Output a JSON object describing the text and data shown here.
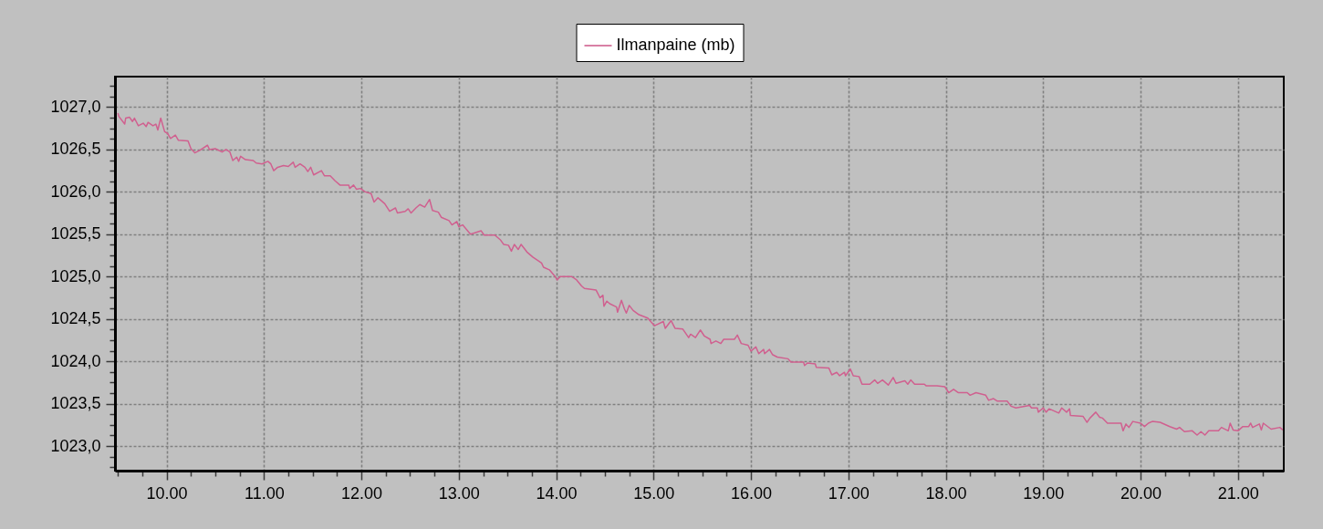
{
  "chart_data": {
    "type": "line",
    "xlim": [
      9.47,
      21.47
    ],
    "xticks": [
      {
        "value": 9.5,
        "label": null
      },
      {
        "value": 9.75,
        "label": null
      },
      {
        "value": 10,
        "label": "10.00"
      },
      {
        "value": 10.25,
        "label": null
      },
      {
        "value": 10.5,
        "label": null
      },
      {
        "value": 10.75,
        "label": null
      },
      {
        "value": 11,
        "label": "11.00"
      },
      {
        "value": 11.25,
        "label": null
      },
      {
        "value": 11.5,
        "label": null
      },
      {
        "value": 11.75,
        "label": null
      },
      {
        "value": 12,
        "label": "12.00"
      },
      {
        "value": 12.25,
        "label": null
      },
      {
        "value": 12.5,
        "label": null
      },
      {
        "value": 12.75,
        "label": null
      },
      {
        "value": 13,
        "label": "13.00"
      },
      {
        "value": 13.25,
        "label": null
      },
      {
        "value": 13.5,
        "label": null
      },
      {
        "value": 13.75,
        "label": null
      },
      {
        "value": 14,
        "label": "14.00"
      },
      {
        "value": 14.25,
        "label": null
      },
      {
        "value": 14.5,
        "label": null
      },
      {
        "value": 14.75,
        "label": null
      },
      {
        "value": 15,
        "label": "15.00"
      },
      {
        "value": 15.25,
        "label": null
      },
      {
        "value": 15.5,
        "label": null
      },
      {
        "value": 15.75,
        "label": null
      },
      {
        "value": 16,
        "label": "16.00"
      },
      {
        "value": 16.25,
        "label": null
      },
      {
        "value": 16.5,
        "label": null
      },
      {
        "value": 16.75,
        "label": null
      },
      {
        "value": 17,
        "label": "17.00"
      },
      {
        "value": 17.25,
        "label": null
      },
      {
        "value": 17.5,
        "label": null
      },
      {
        "value": 17.75,
        "label": null
      },
      {
        "value": 18,
        "label": "18.00"
      },
      {
        "value": 18.25,
        "label": null
      },
      {
        "value": 18.5,
        "label": null
      },
      {
        "value": 18.75,
        "label": null
      },
      {
        "value": 19,
        "label": "19.00"
      },
      {
        "value": 19.25,
        "label": null
      },
      {
        "value": 19.5,
        "label": null
      },
      {
        "value": 19.75,
        "label": null
      },
      {
        "value": 20,
        "label": "20.00"
      },
      {
        "value": 20.25,
        "label": null
      },
      {
        "value": 20.5,
        "label": null
      },
      {
        "value": 20.75,
        "label": null
      },
      {
        "value": 21,
        "label": "21.00"
      },
      {
        "value": 21.25,
        "label": null
      }
    ],
    "ylim": [
      1022.71,
      1027.36
    ],
    "yticks": [
      {
        "value": 1022.75,
        "label": null
      },
      {
        "value": 1022.875,
        "label": null
      },
      {
        "value": 1023,
        "label": "1023,0"
      },
      {
        "value": 1023.125,
        "label": null
      },
      {
        "value": 1023.25,
        "label": null
      },
      {
        "value": 1023.375,
        "label": null
      },
      {
        "value": 1023.5,
        "label": "1023,5"
      },
      {
        "value": 1023.625,
        "label": null
      },
      {
        "value": 1023.75,
        "label": null
      },
      {
        "value": 1023.875,
        "label": null
      },
      {
        "value": 1024,
        "label": "1024,0"
      },
      {
        "value": 1024.125,
        "label": null
      },
      {
        "value": 1024.25,
        "label": null
      },
      {
        "value": 1024.375,
        "label": null
      },
      {
        "value": 1024.5,
        "label": "1024,5"
      },
      {
        "value": 1024.625,
        "label": null
      },
      {
        "value": 1024.75,
        "label": null
      },
      {
        "value": 1024.875,
        "label": null
      },
      {
        "value": 1025,
        "label": "1025,0"
      },
      {
        "value": 1025.125,
        "label": null
      },
      {
        "value": 1025.25,
        "label": null
      },
      {
        "value": 1025.375,
        "label": null
      },
      {
        "value": 1025.5,
        "label": "1025,5"
      },
      {
        "value": 1025.625,
        "label": null
      },
      {
        "value": 1025.75,
        "label": null
      },
      {
        "value": 1025.875,
        "label": null
      },
      {
        "value": 1026,
        "label": "1026,0"
      },
      {
        "value": 1026.125,
        "label": null
      },
      {
        "value": 1026.25,
        "label": null
      },
      {
        "value": 1026.375,
        "label": null
      },
      {
        "value": 1026.5,
        "label": "1026,5"
      },
      {
        "value": 1026.625,
        "label": null
      },
      {
        "value": 1026.75,
        "label": null
      },
      {
        "value": 1026.875,
        "label": null
      },
      {
        "value": 1027,
        "label": "1027,0"
      },
      {
        "value": 1027.125,
        "label": null
      },
      {
        "value": 1027.25,
        "label": null
      }
    ],
    "grid": true,
    "legend": "top",
    "line_style": "solid",
    "x": [
      9.5,
      9.51,
      9.57,
      9.58,
      9.62,
      9.65,
      9.67,
      9.71,
      9.76,
      9.79,
      9.81,
      9.86,
      9.89,
      9.91,
      9.94,
      9.98,
      10.01,
      10.04,
      10.09,
      10.12,
      10.22,
      10.25,
      10.29,
      10.34,
      10.42,
      10.44,
      10.5,
      10.57,
      10.61,
      10.65,
      10.68,
      10.72,
      10.74,
      10.76,
      10.81,
      10.89,
      10.92,
      10.98,
      11.04,
      11.07,
      11.1,
      11.14,
      11.2,
      11.25,
      11.3,
      11.32,
      11.37,
      11.42,
      11.45,
      11.48,
      11.51,
      11.59,
      11.62,
      11.68,
      11.73,
      11.78,
      11.87,
      11.88,
      11.92,
      11.95,
      11.99,
      12.04,
      12.1,
      12.13,
      12.17,
      12.2,
      12.24,
      12.29,
      12.35,
      12.37,
      12.45,
      12.48,
      12.51,
      12.56,
      12.6,
      12.65,
      12.7,
      12.73,
      12.79,
      12.82,
      12.9,
      12.93,
      12.98,
      13.0,
      13.04,
      13.12,
      13.23,
      13.26,
      13.37,
      13.43,
      13.46,
      13.51,
      13.54,
      13.57,
      13.61,
      13.64,
      13.7,
      13.76,
      13.85,
      13.87,
      13.93,
      13.99,
      14.01,
      14.04,
      14.16,
      14.21,
      14.26,
      14.29,
      14.41,
      14.45,
      14.48,
      14.49,
      14.52,
      14.55,
      14.62,
      14.63,
      14.67,
      14.7,
      14.72,
      14.75,
      14.79,
      14.85,
      14.94,
      14.97,
      15.01,
      15.1,
      15.12,
      15.18,
      15.22,
      15.3,
      15.36,
      15.38,
      15.43,
      15.48,
      15.52,
      15.58,
      15.59,
      15.64,
      15.69,
      15.72,
      15.83,
      15.86,
      15.9,
      15.97,
      16.0,
      16.05,
      16.08,
      16.13,
      16.14,
      16.19,
      16.22,
      16.27,
      16.38,
      16.41,
      16.54,
      16.55,
      16.58,
      16.66,
      16.67,
      16.8,
      16.83,
      16.88,
      16.91,
      16.96,
      16.97,
      17.02,
      17.05,
      17.11,
      17.14,
      17.22,
      17.27,
      17.3,
      17.35,
      17.41,
      17.46,
      17.49,
      17.58,
      17.61,
      17.64,
      17.68,
      17.78,
      17.8,
      17.91,
      17.99,
      18.03,
      18.08,
      18.13,
      18.22,
      18.25,
      18.31,
      18.41,
      18.44,
      18.49,
      18.53,
      18.63,
      18.67,
      18.72,
      18.86,
      18.88,
      18.94,
      18.95,
      19.0,
      19.03,
      19.06,
      19.16,
      19.19,
      19.24,
      19.27,
      19.28,
      19.41,
      19.45,
      19.48,
      19.54,
      19.58,
      19.61,
      19.66,
      19.8,
      19.82,
      19.85,
      19.88,
      19.92,
      20.0,
      20.04,
      20.08,
      20.12,
      20.2,
      20.3,
      20.37,
      20.4,
      20.45,
      20.53,
      20.58,
      20.62,
      20.66,
      20.7,
      20.8,
      20.83,
      20.9,
      20.92,
      20.95,
      21.0,
      21.05,
      21.11,
      21.13,
      21.15,
      21.22,
      21.24,
      21.26,
      21.34,
      21.43,
      21.46
    ],
    "series": [
      {
        "name": "Ilmanpaine (mb)",
        "color": "#d0608f",
        "values": [
          1026.93,
          1026.89,
          1026.8,
          1026.87,
          1026.88,
          1026.83,
          1026.87,
          1026.78,
          1026.81,
          1026.77,
          1026.82,
          1026.78,
          1026.8,
          1026.73,
          1026.87,
          1026.71,
          1026.69,
          1026.63,
          1026.67,
          1026.61,
          1026.6,
          1026.51,
          1026.46,
          1026.49,
          1026.55,
          1026.5,
          1026.51,
          1026.47,
          1026.5,
          1026.47,
          1026.37,
          1026.41,
          1026.36,
          1026.42,
          1026.38,
          1026.37,
          1026.34,
          1026.33,
          1026.36,
          1026.33,
          1026.25,
          1026.29,
          1026.31,
          1026.3,
          1026.35,
          1026.29,
          1026.33,
          1026.29,
          1026.24,
          1026.29,
          1026.2,
          1026.25,
          1026.19,
          1026.19,
          1026.13,
          1026.08,
          1026.08,
          1026.04,
          1026.08,
          1026.03,
          1026.04,
          1026.0,
          1025.98,
          1025.88,
          1025.93,
          1025.9,
          1025.86,
          1025.77,
          1025.81,
          1025.75,
          1025.77,
          1025.8,
          1025.75,
          1025.81,
          1025.85,
          1025.82,
          1025.91,
          1025.78,
          1025.76,
          1025.7,
          1025.66,
          1025.61,
          1025.65,
          1025.59,
          1025.61,
          1025.5,
          1025.54,
          1025.49,
          1025.49,
          1025.43,
          1025.38,
          1025.37,
          1025.3,
          1025.38,
          1025.32,
          1025.38,
          1025.29,
          1025.23,
          1025.16,
          1025.11,
          1025.08,
          1025.0,
          1024.96,
          1025.0,
          1025.0,
          1024.96,
          1024.89,
          1024.86,
          1024.84,
          1024.75,
          1024.78,
          1024.65,
          1024.71,
          1024.68,
          1024.64,
          1024.58,
          1024.72,
          1024.62,
          1024.57,
          1024.66,
          1024.6,
          1024.55,
          1024.51,
          1024.47,
          1024.42,
          1024.47,
          1024.39,
          1024.48,
          1024.39,
          1024.38,
          1024.28,
          1024.32,
          1024.28,
          1024.37,
          1024.3,
          1024.26,
          1024.21,
          1024.24,
          1024.21,
          1024.26,
          1024.26,
          1024.31,
          1024.21,
          1024.19,
          1024.12,
          1024.17,
          1024.09,
          1024.14,
          1024.09,
          1024.14,
          1024.08,
          1024.05,
          1024.03,
          1023.99,
          1023.99,
          1023.95,
          1023.98,
          1023.97,
          1023.93,
          1023.92,
          1023.84,
          1023.87,
          1023.83,
          1023.87,
          1023.83,
          1023.91,
          1023.83,
          1023.82,
          1023.73,
          1023.73,
          1023.78,
          1023.74,
          1023.78,
          1023.72,
          1023.81,
          1023.74,
          1023.77,
          1023.73,
          1023.78,
          1023.73,
          1023.73,
          1023.71,
          1023.71,
          1023.7,
          1023.63,
          1023.67,
          1023.63,
          1023.63,
          1023.6,
          1023.63,
          1023.6,
          1023.54,
          1023.56,
          1023.53,
          1023.53,
          1023.47,
          1023.45,
          1023.48,
          1023.45,
          1023.45,
          1023.4,
          1023.45,
          1023.4,
          1023.44,
          1023.39,
          1023.45,
          1023.4,
          1023.44,
          1023.36,
          1023.35,
          1023.28,
          1023.33,
          1023.4,
          1023.34,
          1023.33,
          1023.27,
          1023.27,
          1023.18,
          1023.26,
          1023.22,
          1023.29,
          1023.27,
          1023.23,
          1023.27,
          1023.29,
          1023.28,
          1023.23,
          1023.2,
          1023.22,
          1023.17,
          1023.18,
          1023.13,
          1023.17,
          1023.13,
          1023.18,
          1023.18,
          1023.22,
          1023.18,
          1023.27,
          1023.19,
          1023.18,
          1023.23,
          1023.23,
          1023.27,
          1023.22,
          1023.26,
          1023.19,
          1023.27,
          1023.2,
          1023.22,
          1023.19
        ]
      }
    ]
  }
}
